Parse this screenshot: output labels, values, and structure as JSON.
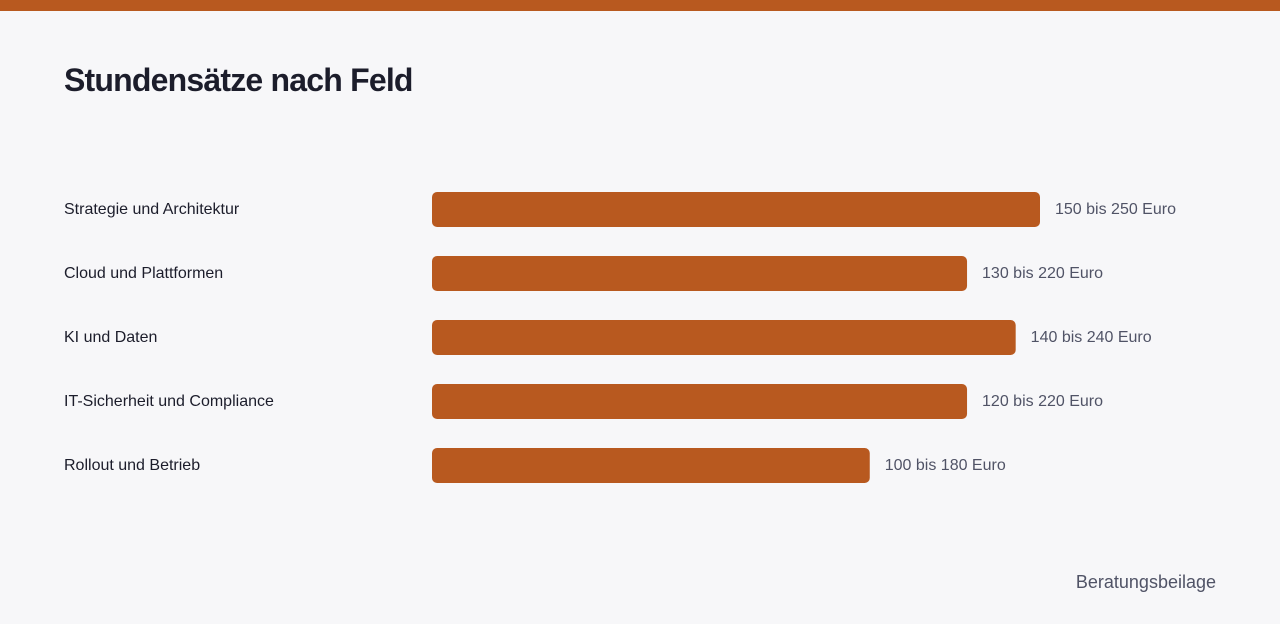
{
  "header": {
    "accent_color": "#b8591f"
  },
  "chart_data": {
    "type": "bar",
    "orientation": "horizontal",
    "title": "Stundensätze nach Feld",
    "xlabel": "",
    "ylabel": "",
    "grid": false,
    "bar_color": "#b8591f",
    "categories": [
      "Strategie und Architektur",
      "Cloud und Plattformen",
      "KI und Daten",
      "IT-Sicherheit und Compliance",
      "Rollout und Betrieb"
    ],
    "values": [
      250,
      220,
      240,
      220,
      180
    ],
    "ranges": [
      [
        150,
        250
      ],
      [
        130,
        220
      ],
      [
        140,
        240
      ],
      [
        120,
        220
      ],
      [
        100,
        180
      ]
    ],
    "data_labels": [
      "150 bis 250 Euro",
      "130 bis 220 Euro",
      "140 bis 240 Euro",
      "120 bis 220 Euro",
      "100 bis 180 Euro"
    ]
  },
  "footer": {
    "note": "Beratungsbeilage"
  }
}
